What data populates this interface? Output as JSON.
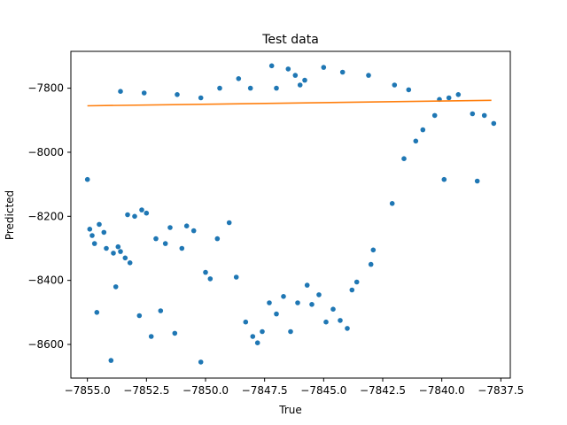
{
  "chart_data": {
    "type": "scatter",
    "title": "Test data",
    "xlabel": "True",
    "ylabel": "Predicted",
    "xlim": [
      -7855.7,
      -7837.1
    ],
    "ylim": [
      -8705,
      -7685
    ],
    "xticks": [
      -7855.0,
      -7852.5,
      -7850.0,
      -7847.5,
      -7845.0,
      -7842.5,
      -7840.0,
      -7837.5
    ],
    "xtick_labels": [
      "−7855.0",
      "−7852.5",
      "−7850.0",
      "−7847.5",
      "−7845.0",
      "−7842.5",
      "−7840.0",
      "−7837.5"
    ],
    "yticks": [
      -7800,
      -8000,
      -8200,
      -8400,
      -8600
    ],
    "ytick_labels": [
      "−7800",
      "−8000",
      "−8200",
      "−8400",
      "−8600"
    ],
    "grid": false,
    "legend": "none",
    "series": [
      {
        "kind": "points",
        "color": "#1f77b4",
        "points": [
          [
            -7855.0,
            -8085
          ],
          [
            -7854.9,
            -8240
          ],
          [
            -7854.8,
            -8260
          ],
          [
            -7854.7,
            -8285
          ],
          [
            -7854.6,
            -8500
          ],
          [
            -7854.5,
            -8225
          ],
          [
            -7854.3,
            -8250
          ],
          [
            -7854.2,
            -8300
          ],
          [
            -7854.0,
            -8650
          ],
          [
            -7853.9,
            -8315
          ],
          [
            -7853.8,
            -8420
          ],
          [
            -7853.7,
            -8295
          ],
          [
            -7853.6,
            -8310
          ],
          [
            -7853.4,
            -8330
          ],
          [
            -7853.3,
            -8195
          ],
          [
            -7853.2,
            -8345
          ],
          [
            -7853.0,
            -8200
          ],
          [
            -7852.8,
            -8510
          ],
          [
            -7852.7,
            -8180
          ],
          [
            -7852.5,
            -8190
          ],
          [
            -7852.3,
            -8575
          ],
          [
            -7852.1,
            -8270
          ],
          [
            -7851.9,
            -8495
          ],
          [
            -7851.7,
            -8285
          ],
          [
            -7851.5,
            -8235
          ],
          [
            -7851.3,
            -8565
          ],
          [
            -7851.0,
            -8300
          ],
          [
            -7850.8,
            -8230
          ],
          [
            -7850.5,
            -8245
          ],
          [
            -7850.2,
            -8655
          ],
          [
            -7850.0,
            -8375
          ],
          [
            -7849.8,
            -8395
          ],
          [
            -7849.5,
            -8270
          ],
          [
            -7849.0,
            -8220
          ],
          [
            -7848.7,
            -8390
          ],
          [
            -7848.3,
            -8530
          ],
          [
            -7848.0,
            -8575
          ],
          [
            -7847.8,
            -8595
          ],
          [
            -7847.6,
            -8560
          ],
          [
            -7847.3,
            -8470
          ],
          [
            -7847.0,
            -8505
          ],
          [
            -7846.7,
            -8450
          ],
          [
            -7846.4,
            -8560
          ],
          [
            -7846.1,
            -8470
          ],
          [
            -7845.7,
            -8415
          ],
          [
            -7845.5,
            -8475
          ],
          [
            -7845.2,
            -8445
          ],
          [
            -7844.9,
            -8530
          ],
          [
            -7844.6,
            -8490
          ],
          [
            -7844.3,
            -8525
          ],
          [
            -7844.0,
            -8550
          ],
          [
            -7843.8,
            -8430
          ],
          [
            -7843.6,
            -8405
          ],
          [
            -7843.0,
            -8350
          ],
          [
            -7842.9,
            -8305
          ],
          [
            -7842.1,
            -8160
          ],
          [
            -7841.6,
            -8020
          ],
          [
            -7841.1,
            -7965
          ],
          [
            -7840.8,
            -7930
          ],
          [
            -7840.3,
            -7885
          ],
          [
            -7840.1,
            -7835
          ],
          [
            -7839.9,
            -8085
          ],
          [
            -7839.7,
            -7830
          ],
          [
            -7839.3,
            -7820
          ],
          [
            -7838.7,
            -7880
          ],
          [
            -7838.5,
            -8090
          ],
          [
            -7838.2,
            -7885
          ],
          [
            -7837.8,
            -7910
          ],
          [
            -7847.2,
            -7730
          ],
          [
            -7846.5,
            -7740
          ],
          [
            -7845.8,
            -7775
          ],
          [
            -7845.0,
            -7735
          ],
          [
            -7844.2,
            -7750
          ],
          [
            -7843.1,
            -7760
          ],
          [
            -7842.0,
            -7790
          ],
          [
            -7841.4,
            -7805
          ],
          [
            -7846.0,
            -7790
          ],
          [
            -7849.4,
            -7800
          ],
          [
            -7853.6,
            -7810
          ],
          [
            -7852.6,
            -7815
          ],
          [
            -7851.2,
            -7820
          ],
          [
            -7850.2,
            -7830
          ],
          [
            -7848.6,
            -7770
          ],
          [
            -7848.1,
            -7800
          ],
          [
            -7847.0,
            -7800
          ],
          [
            -7846.2,
            -7760
          ]
        ]
      },
      {
        "kind": "fit-line",
        "color": "#ff7f0e",
        "x": [
          -7855.0,
          -7837.9
        ],
        "y": [
          -7855,
          -7838
        ]
      }
    ]
  }
}
